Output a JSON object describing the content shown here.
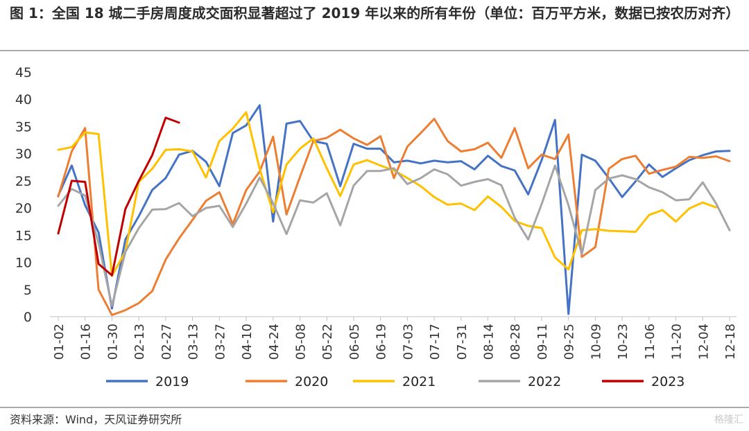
{
  "title": "图 1：全国 18 城二手房周度成交面积显著超过了 2019 年以来的所有年份（单位：百万平方米，数据已按农历对齐）",
  "source": "资料来源：Wind，天风证券研究所",
  "watermark": "格隆汇",
  "chart_data": {
    "type": "line",
    "title": "图 1：全国 18 城二手房周度成交面积显著超过了 2019 年以来的所有年份（单位：百万平方米，数据已按农历对齐）",
    "xlabel": "",
    "ylabel": "",
    "ylim": [
      0,
      45
    ],
    "yticks": [
      0,
      5,
      10,
      15,
      20,
      25,
      30,
      35,
      40,
      45
    ],
    "grid": false,
    "legend_position": "bottom",
    "x_tick_labels": [
      "01-02",
      "01-16",
      "01-30",
      "02-13",
      "02-27",
      "03-13",
      "03-27",
      "04-10",
      "04-24",
      "05-08",
      "05-22",
      "06-05",
      "06-19",
      "07-03",
      "07-17",
      "07-31",
      "08-14",
      "08-28",
      "09-11",
      "09-25",
      "10-09",
      "10-23",
      "11-06",
      "11-20",
      "12-04",
      "12-18"
    ],
    "series": [
      {
        "name": "2019",
        "color": "#4472C4",
        "values": [
          22.3,
          27.8,
          20.5,
          15.5,
          1.5,
          14.2,
          18.5,
          23.3,
          25.5,
          29.8,
          30.5,
          28.5,
          24.0,
          33.8,
          35.2,
          38.9,
          17.5,
          35.5,
          36.0,
          32.3,
          31.8,
          24.0,
          31.8,
          30.9,
          30.9,
          28.4,
          28.7,
          28.2,
          28.7,
          28.4,
          28.6,
          27.1,
          29.6,
          27.7,
          26.9,
          22.5,
          28.8,
          36.2,
          0.5,
          29.8,
          28.7,
          25.5,
          22.0,
          24.9,
          28.0,
          25.7,
          27.3,
          28.8,
          29.7,
          30.4,
          30.5
        ]
      },
      {
        "name": "2020",
        "color": "#ED7D31",
        "values": [
          22.1,
          30.4,
          34.7,
          5.0,
          0.3,
          1.2,
          2.5,
          4.7,
          10.5,
          14.4,
          17.8,
          21.3,
          22.9,
          17.0,
          23.3,
          26.7,
          33.1,
          18.8,
          25.7,
          32.3,
          32.9,
          34.4,
          32.8,
          31.6,
          33.2,
          25.5,
          31.3,
          33.8,
          36.4,
          32.3,
          30.4,
          30.8,
          32.0,
          29.2,
          34.7,
          27.3,
          29.8,
          29.0,
          33.5,
          11.0,
          12.8,
          27.2,
          29.0,
          29.6,
          26.3,
          27.0,
          27.6,
          29.4,
          29.2,
          29.5,
          28.6
        ]
      },
      {
        "name": "2021",
        "color": "#FFC000",
        "values": [
          30.7,
          31.2,
          33.9,
          33.6,
          7.5,
          12.0,
          24.8,
          27.2,
          30.7,
          30.8,
          30.4,
          25.6,
          32.3,
          34.6,
          37.6,
          27.2,
          19.2,
          28.0,
          30.9,
          32.8,
          27.3,
          22.2,
          28.0,
          28.8,
          27.8,
          26.9,
          25.5,
          24.0,
          22.0,
          20.6,
          20.8,
          19.6,
          22.1,
          20.2,
          17.6,
          16.7,
          16.3,
          10.9,
          8.7,
          15.9,
          16.1,
          15.8,
          15.7,
          15.6,
          18.7,
          19.6,
          17.5,
          19.9,
          21.0,
          20.1
        ]
      },
      {
        "name": "2022",
        "color": "#A5A5A5",
        "values": [
          20.4,
          23.5,
          22.3,
          13.5,
          2.0,
          11.9,
          16.3,
          19.7,
          19.8,
          20.9,
          18.5,
          20.0,
          20.4,
          16.5,
          20.8,
          25.6,
          20.9,
          15.2,
          21.4,
          21.0,
          22.7,
          16.8,
          24.1,
          26.8,
          26.8,
          27.3,
          24.4,
          25.5,
          27.1,
          26.2,
          24.1,
          24.8,
          25.3,
          24.2,
          18.2,
          14.2,
          20.7,
          27.8,
          20.5,
          11.5,
          23.3,
          25.4,
          26.0,
          25.3,
          23.8,
          22.9,
          21.4,
          21.6,
          24.7,
          20.8,
          15.9
        ]
      },
      {
        "name": "2023",
        "color": "#C00000",
        "values": [
          15.3,
          25.0,
          24.8,
          9.7,
          7.6,
          19.8,
          25.0,
          29.7,
          36.6,
          35.7
        ]
      }
    ]
  }
}
